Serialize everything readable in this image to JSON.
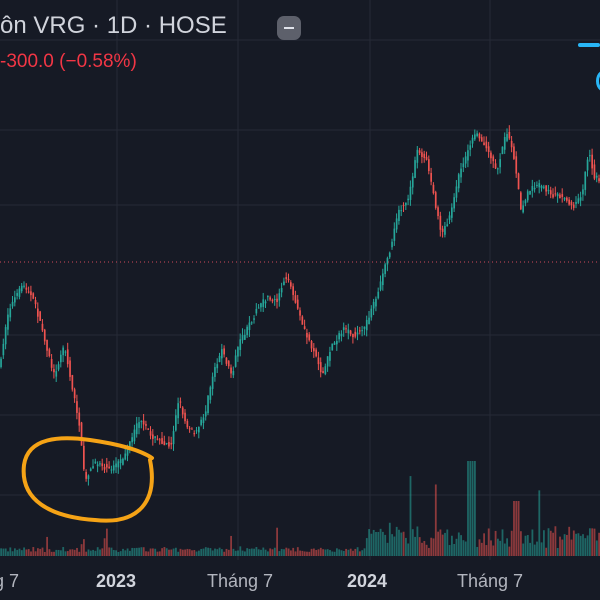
{
  "header": {
    "title": "ôn VRG · 1D · HOSE",
    "change": "-300.0 (−0.58%)"
  },
  "colors": {
    "background": "#161a25",
    "up": "#26a69a",
    "down": "#ef5350",
    "grid": "#262a36",
    "price_line": "#d04a5a",
    "annotation": "#f5a316",
    "accent": "#29b6f6"
  },
  "chart_data": {
    "type": "candlestick",
    "x_ticks": [
      "g 7",
      "2023",
      "Tháng 7",
      "2024",
      "Tháng 7"
    ],
    "x_tick_emphasis": [
      false,
      true,
      false,
      true,
      false
    ],
    "annotation": "hand-drawn orange circle around the late-2022 low",
    "volume_panel": true
  }
}
